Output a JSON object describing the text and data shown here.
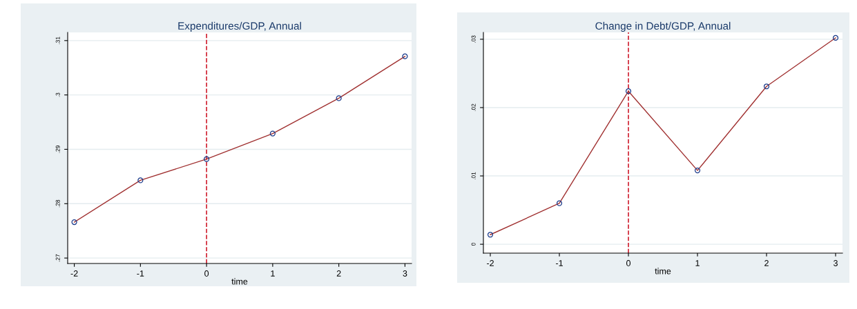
{
  "chart_data": [
    {
      "type": "line",
      "title": "Expenditures/GDP, Annual",
      "xlabel": "time",
      "x": [
        -2,
        -1,
        0,
        1,
        2,
        3
      ],
      "series": [
        {
          "color": "#a03030",
          "values": [
            0.2766,
            0.2843,
            0.2882,
            0.2929,
            0.2994,
            0.3071
          ]
        }
      ],
      "xlim": [
        -2.1,
        3.1
      ],
      "xticks": [
        -2,
        -1,
        0,
        1,
        2,
        3
      ],
      "ylim": [
        0.269,
        0.3115
      ],
      "yticks": [
        {
          "value": 0.27,
          "label": ".27"
        },
        {
          "value": 0.28,
          "label": ".28"
        },
        {
          "value": 0.29,
          "label": ".29"
        },
        {
          "value": 0.3,
          "label": ".3"
        },
        {
          "value": 0.31,
          "label": ".31"
        }
      ],
      "grid": "y",
      "marker": "circle",
      "line_style": "solid",
      "ref_lines": [
        {
          "axis": "x",
          "value": 0,
          "color": "#d02030",
          "line_style": "dashed"
        }
      ]
    },
    {
      "type": "line",
      "title": "Change in Debt/GDP, Annual",
      "xlabel": "time",
      "x": [
        -2,
        -1,
        0,
        1,
        2,
        3
      ],
      "series": [
        {
          "color": "#a03030",
          "values": [
            0.0014,
            0.006,
            0.0224,
            0.0108,
            0.0231,
            0.0302
          ]
        }
      ],
      "xlim": [
        -2.1,
        3.1
      ],
      "xticks": [
        -2,
        -1,
        0,
        1,
        2,
        3
      ],
      "ylim": [
        -0.0013,
        0.031
      ],
      "yticks": [
        {
          "value": 0,
          "label": "0"
        },
        {
          "value": 0.01,
          "label": ".01"
        },
        {
          "value": 0.02,
          "label": ".02"
        },
        {
          "value": 0.03,
          "label": ".03"
        }
      ],
      "grid": "y",
      "marker": "circle",
      "line_style": "solid",
      "ref_lines": [
        {
          "axis": "x",
          "value": 0,
          "color": "#d02030",
          "line_style": "dashed"
        }
      ]
    }
  ]
}
